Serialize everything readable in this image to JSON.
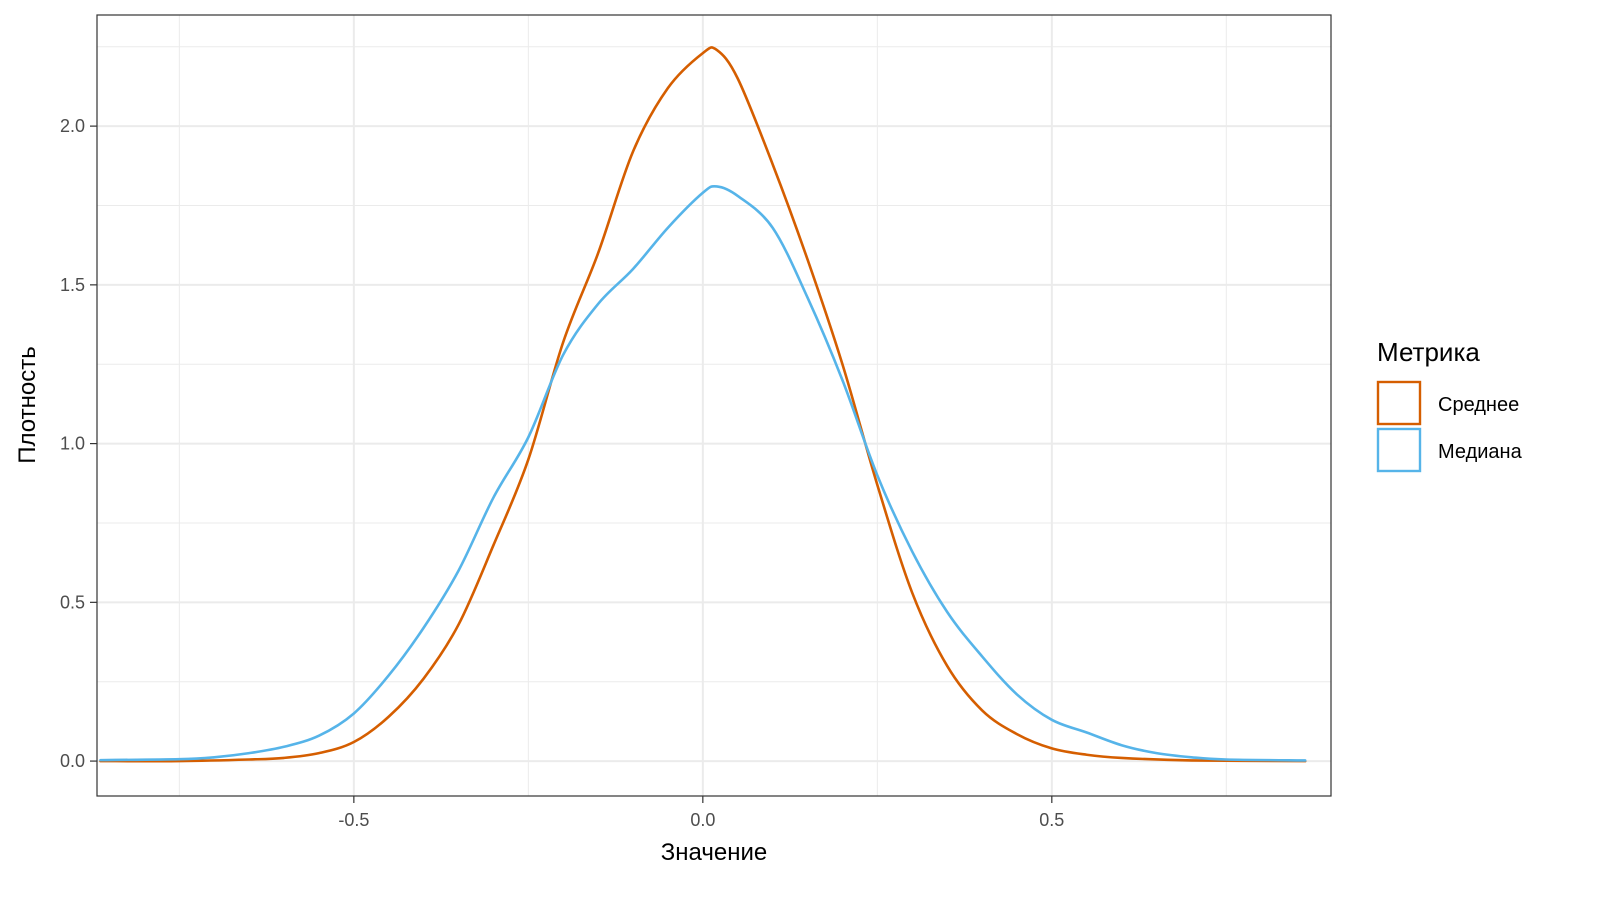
{
  "chart_data": {
    "type": "line",
    "title": "",
    "xlabel": "Значение",
    "ylabel": "Плотность",
    "xlim": [
      -0.868,
      0.9
    ],
    "ylim": [
      -0.11,
      2.35
    ],
    "x_ticks": [
      -0.5,
      0.0,
      0.5
    ],
    "x_tick_labels": [
      "-0.5",
      "0.0",
      "0.5"
    ],
    "y_ticks": [
      0.0,
      0.5,
      1.0,
      1.5,
      2.0
    ],
    "y_tick_labels": [
      "0.0",
      "0.5",
      "1.0",
      "1.5",
      "2.0"
    ],
    "grid": true,
    "legend": {
      "title": "Метрика",
      "placement": "right"
    },
    "series": [
      {
        "name": "Среднее",
        "color": "#D55E00",
        "points": [
          [
            -0.863,
            0.0
          ],
          [
            -0.75,
            0.0
          ],
          [
            -0.65,
            0.005
          ],
          [
            -0.6,
            0.01
          ],
          [
            -0.55,
            0.025
          ],
          [
            -0.5,
            0.06
          ],
          [
            -0.45,
            0.14
          ],
          [
            -0.4,
            0.26
          ],
          [
            -0.35,
            0.43
          ],
          [
            -0.3,
            0.68
          ],
          [
            -0.25,
            0.95
          ],
          [
            -0.2,
            1.32
          ],
          [
            -0.15,
            1.6
          ],
          [
            -0.1,
            1.92
          ],
          [
            -0.05,
            2.12
          ],
          [
            0.0,
            2.23
          ],
          [
            0.02,
            2.24
          ],
          [
            0.05,
            2.15
          ],
          [
            0.1,
            1.88
          ],
          [
            0.15,
            1.58
          ],
          [
            0.2,
            1.25
          ],
          [
            0.25,
            0.87
          ],
          [
            0.3,
            0.53
          ],
          [
            0.35,
            0.3
          ],
          [
            0.4,
            0.16
          ],
          [
            0.45,
            0.085
          ],
          [
            0.5,
            0.04
          ],
          [
            0.55,
            0.02
          ],
          [
            0.6,
            0.01
          ],
          [
            0.7,
            0.002
          ],
          [
            0.863,
            0.0
          ]
        ]
      },
      {
        "name": "Медиана",
        "color": "#56B4E9",
        "points": [
          [
            -0.863,
            0.003
          ],
          [
            -0.75,
            0.006
          ],
          [
            -0.7,
            0.012
          ],
          [
            -0.65,
            0.025
          ],
          [
            -0.6,
            0.045
          ],
          [
            -0.55,
            0.08
          ],
          [
            -0.5,
            0.15
          ],
          [
            -0.45,
            0.27
          ],
          [
            -0.4,
            0.42
          ],
          [
            -0.35,
            0.6
          ],
          [
            -0.3,
            0.83
          ],
          [
            -0.25,
            1.02
          ],
          [
            -0.2,
            1.28
          ],
          [
            -0.15,
            1.44
          ],
          [
            -0.1,
            1.55
          ],
          [
            -0.05,
            1.68
          ],
          [
            0.0,
            1.79
          ],
          [
            0.02,
            1.81
          ],
          [
            0.05,
            1.78
          ],
          [
            0.1,
            1.68
          ],
          [
            0.15,
            1.46
          ],
          [
            0.2,
            1.2
          ],
          [
            0.25,
            0.9
          ],
          [
            0.3,
            0.66
          ],
          [
            0.35,
            0.47
          ],
          [
            0.4,
            0.33
          ],
          [
            0.45,
            0.21
          ],
          [
            0.5,
            0.13
          ],
          [
            0.55,
            0.09
          ],
          [
            0.6,
            0.05
          ],
          [
            0.65,
            0.025
          ],
          [
            0.7,
            0.012
          ],
          [
            0.75,
            0.005
          ],
          [
            0.863,
            0.002
          ]
        ]
      }
    ]
  }
}
